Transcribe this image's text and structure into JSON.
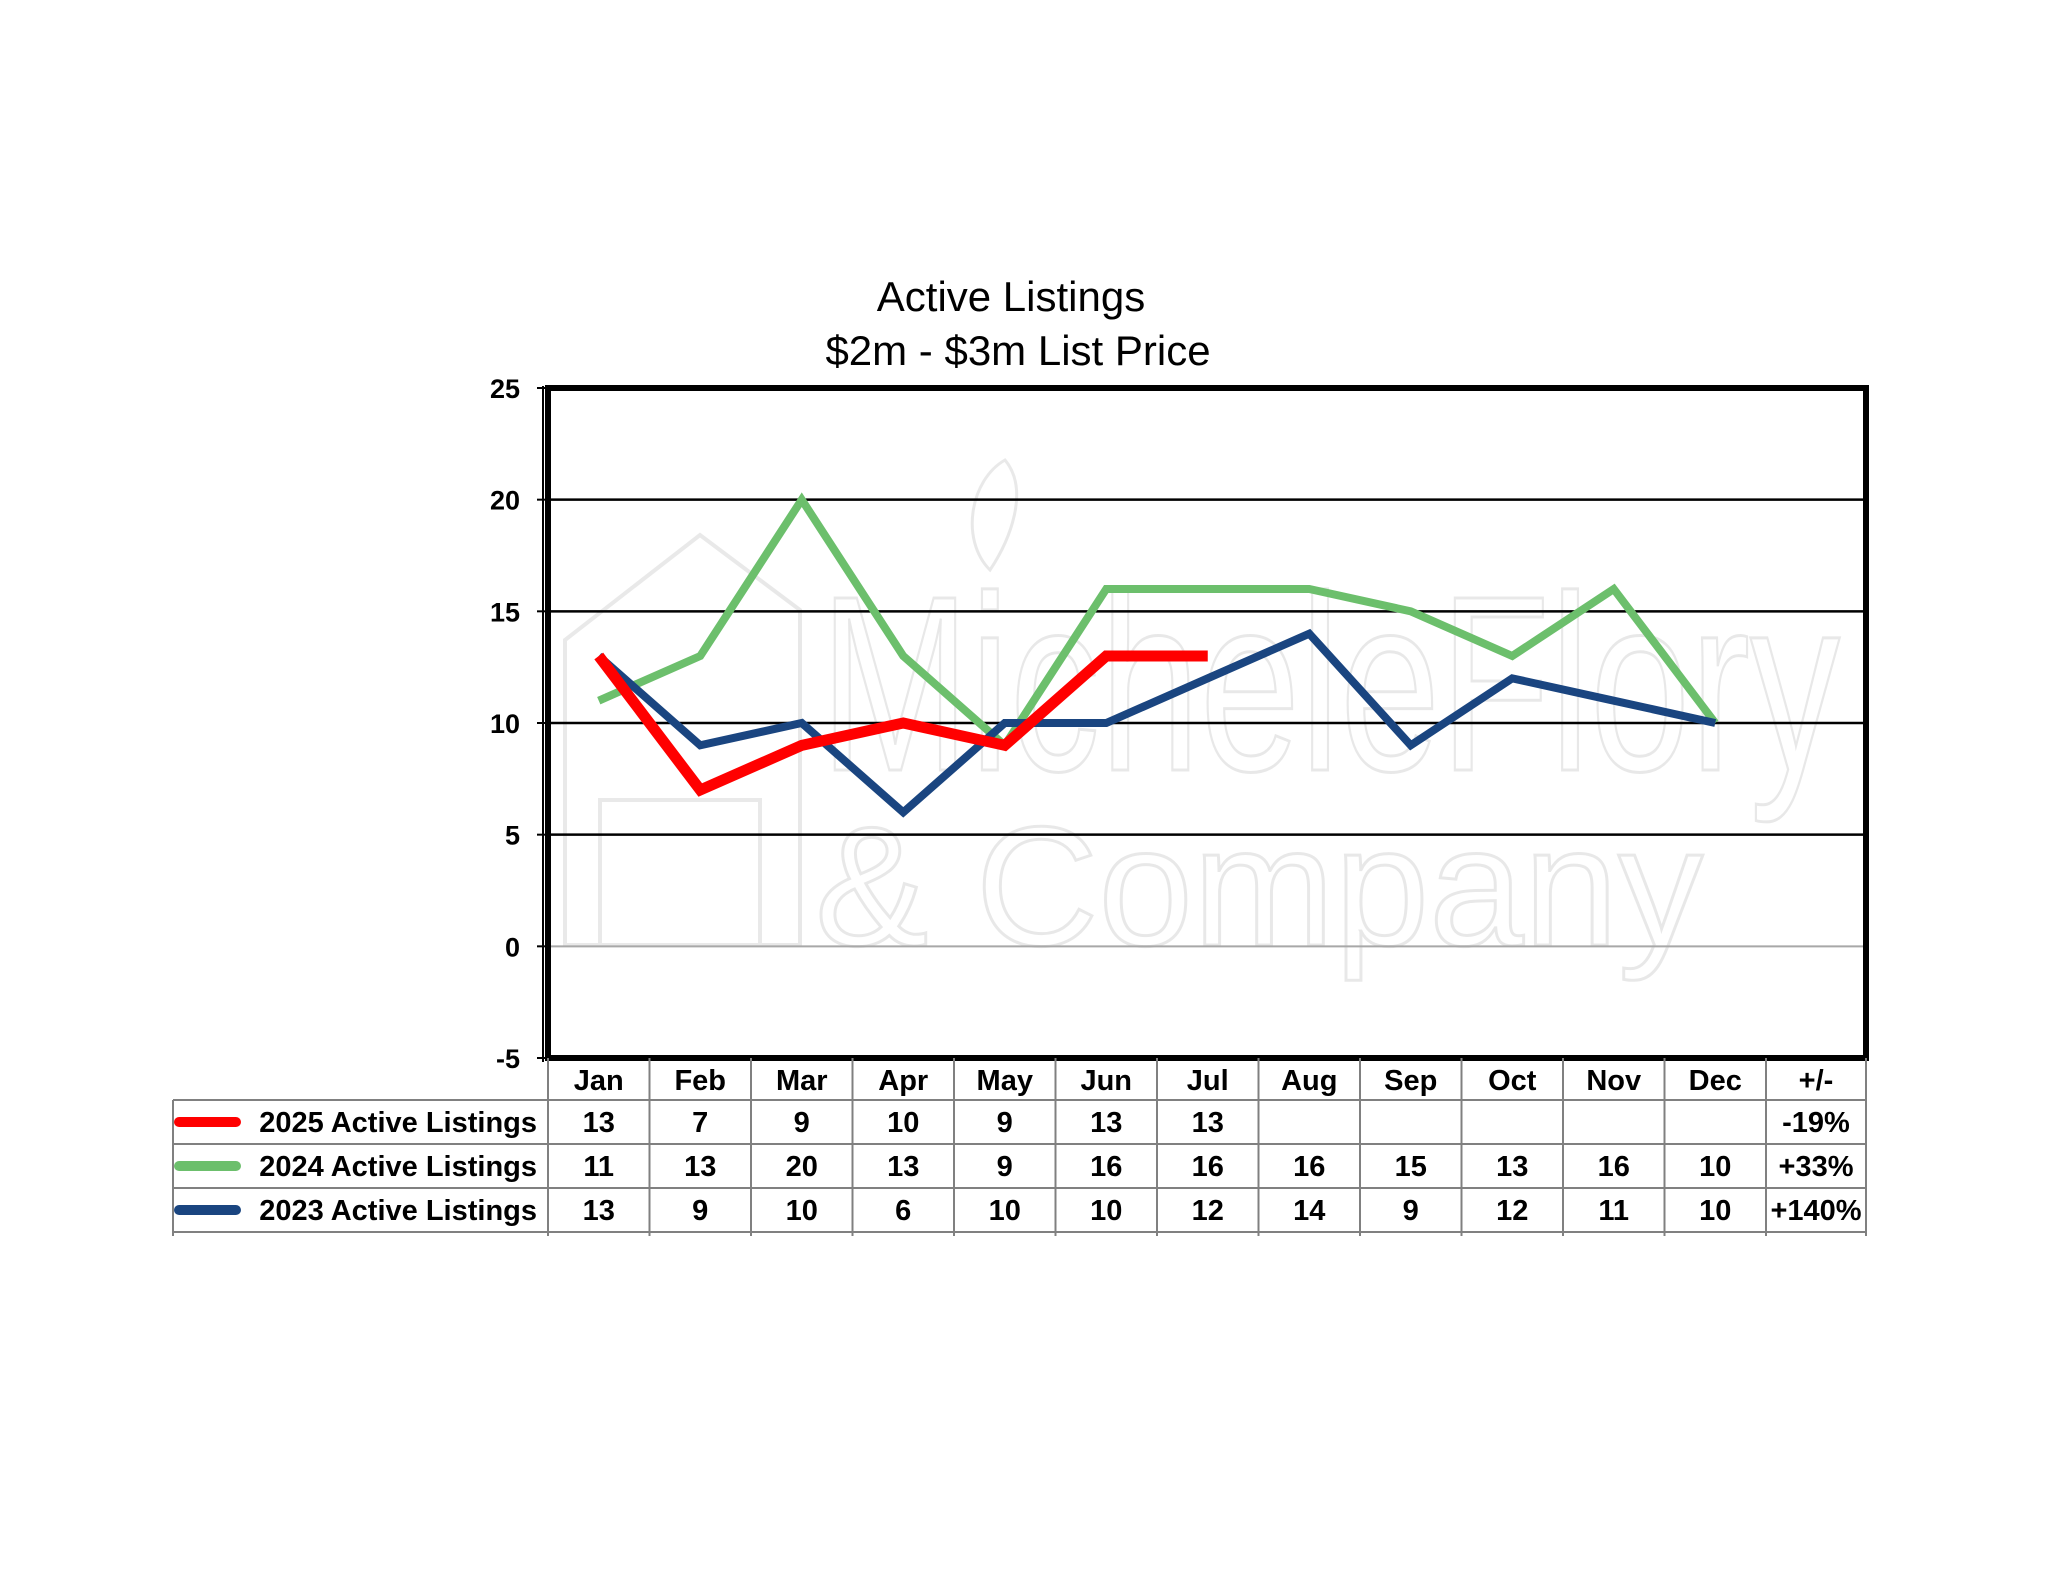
{
  "watermark": {
    "line1": "MicheleFlory",
    "line2": "& Company"
  },
  "chart_data": {
    "type": "line",
    "title": "Active Listings",
    "subtitle": "$2m - $3m List Price",
    "xlabel": "",
    "ylabel": "",
    "ylim": [
      -5,
      25
    ],
    "yticks": [
      25,
      20,
      15,
      10,
      5,
      0,
      -5
    ],
    "grid": true,
    "legend": "table-below",
    "categories": [
      "Jan",
      "Feb",
      "Mar",
      "Apr",
      "May",
      "Jun",
      "Jul",
      "Aug",
      "Sep",
      "Oct",
      "Nov",
      "Dec"
    ],
    "change_header": "+/-",
    "series": [
      {
        "name": "2025 Active Listings",
        "color": "#ff0000",
        "values": [
          13,
          7,
          9,
          10,
          9,
          13,
          13,
          null,
          null,
          null,
          null,
          null
        ],
        "change": "-19%"
      },
      {
        "name": "2024 Active Listings",
        "color": "#6cbf6c",
        "values": [
          11,
          13,
          20,
          13,
          9,
          16,
          16,
          16,
          15,
          13,
          16,
          10
        ],
        "change": "+33%"
      },
      {
        "name": "2023 Active Listings",
        "color": "#1a4580",
        "values": [
          13,
          9,
          10,
          6,
          10,
          10,
          12,
          14,
          9,
          12,
          11,
          10
        ],
        "change": "+140%"
      }
    ]
  }
}
